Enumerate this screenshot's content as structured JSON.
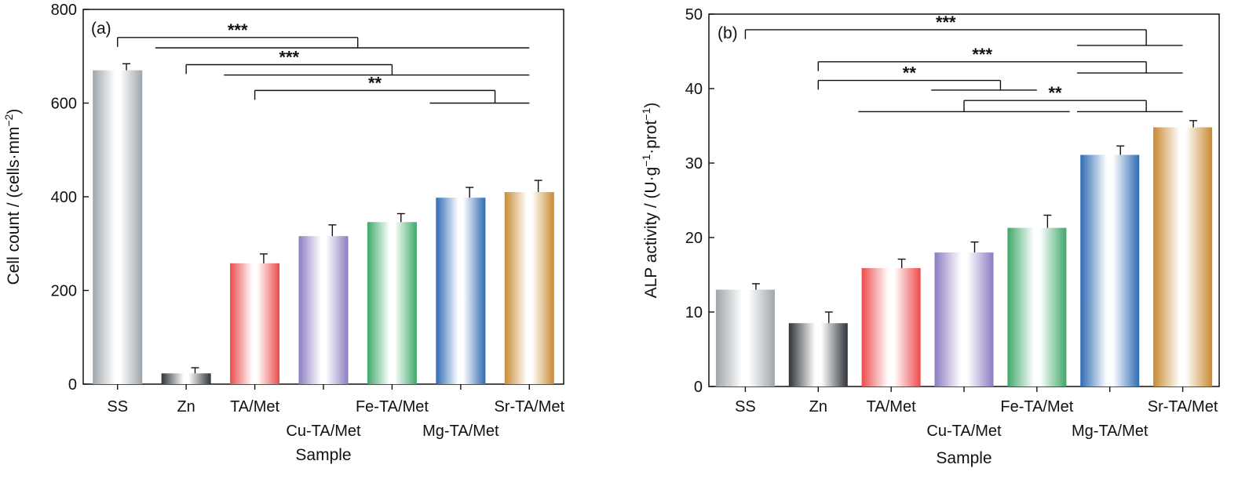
{
  "chart_data": [
    {
      "panel_label": "(a)",
      "type": "bar",
      "xlabel": "Sample",
      "ylabel_main": "Cell count / (cells·mm",
      "ylabel_sup": "−2",
      "ylabel_end": ")",
      "ylim": [
        0,
        800
      ],
      "yticks": [
        "0",
        "200",
        "400",
        "600",
        "800"
      ],
      "ytick_values": [
        0,
        200,
        400,
        600,
        800
      ],
      "categories": [
        "SS",
        "Zn",
        "TA/Met",
        "Cu-TA/Met",
        "Fe-TA/Met",
        "Mg-TA/Met",
        "Sr-TA/Met"
      ],
      "values": [
        670,
        23,
        258,
        316,
        346,
        398,
        410
      ],
      "errors": [
        14,
        12,
        20,
        24,
        18,
        22,
        25
      ],
      "colors": [
        "#9ea5aa",
        "#2f3439",
        "#ec4b4b",
        "#8c7cc0",
        "#3fa86a",
        "#2f6bb3",
        "#c98a32"
      ],
      "grid": false,
      "significance": [
        {
          "label": "***",
          "from_index": 0,
          "to_index": 6,
          "to_start_index": 1,
          "level": 740,
          "tail": 718
        },
        {
          "label": "***",
          "from_index": 1,
          "to_index": 6,
          "to_start_index": 2,
          "level": 682,
          "tail": 660
        },
        {
          "label": "**",
          "from_index": 2,
          "to_index": 6,
          "to_start_index": 5,
          "level": 627,
          "tail": 600
        }
      ]
    },
    {
      "panel_label": "(b)",
      "type": "bar",
      "xlabel": "Sample",
      "ylabel_main": "ALP activity / (U·g",
      "ylabel_sup1": "−1",
      "ylabel_mid": "·prot",
      "ylabel_sup2": "−1",
      "ylabel_end": ")",
      "ylim": [
        0,
        50
      ],
      "yticks": [
        "0",
        "10",
        "20",
        "30",
        "40",
        "50"
      ],
      "ytick_values": [
        0,
        10,
        20,
        30,
        40,
        50
      ],
      "categories": [
        "SS",
        "Zn",
        "TA/Met",
        "Cu-TA/Met",
        "Fe-TA/Met",
        "Mg-TA/Met",
        "Sr-TA/Met"
      ],
      "values": [
        13.0,
        8.5,
        15.9,
        18.0,
        21.3,
        31.1,
        34.8
      ],
      "errors": [
        0.8,
        1.5,
        1.2,
        1.4,
        1.7,
        1.2,
        0.9
      ],
      "colors": [
        "#9ea5aa",
        "#2f3439",
        "#ec4b4b",
        "#8c7cc0",
        "#3fa86a",
        "#2f6bb3",
        "#c98a32"
      ],
      "grid": false,
      "significance": [
        {
          "label": "***",
          "from_index": 0,
          "to_index": 6,
          "to_start_index": 5,
          "level": 47.9,
          "tail": 45.8
        },
        {
          "label": "***",
          "from_index": 1,
          "to_index": 6,
          "to_start_index": 5,
          "level": 43.6,
          "tail": 42.1
        },
        {
          "label": "**",
          "from_index": 1,
          "to_index": 4,
          "to_start_index": 3,
          "level": 41.1,
          "tail": 39.8
        },
        {
          "label": "**",
          "from_index": 3,
          "to_index": 6,
          "to_start_index": 5,
          "from_start_index": 2,
          "level": 38.4,
          "tail": 36.9,
          "left_bracket": true
        }
      ]
    }
  ]
}
